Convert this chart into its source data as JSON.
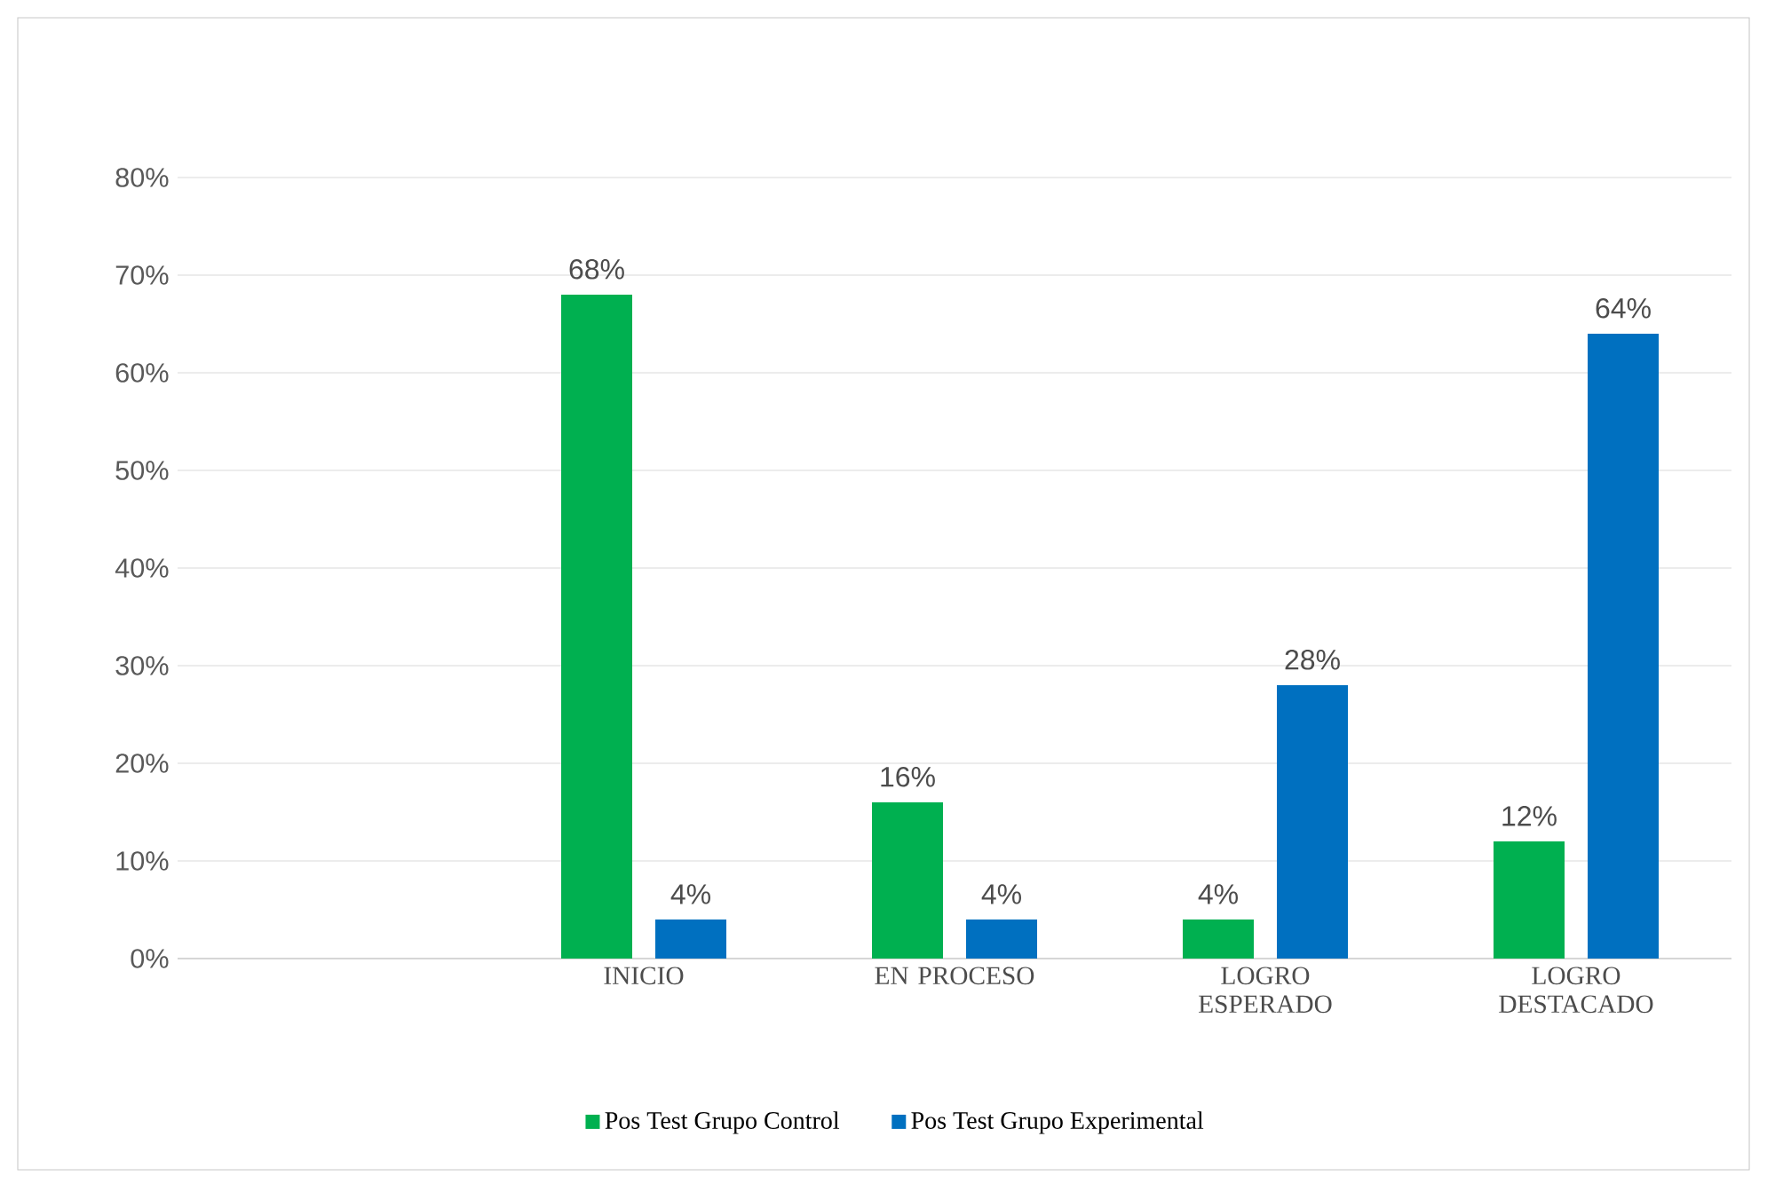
{
  "chart_data": {
    "type": "bar",
    "categories": [
      null,
      "INICIO",
      "EN PROCESO",
      "LOGRO ESPERADO",
      "LOGRO DESTACADO"
    ],
    "series": [
      {
        "name": "Pos Test Grupo Control",
        "color": "#00b050",
        "values": [
          null,
          68,
          16,
          4,
          12
        ],
        "value_labels": [
          null,
          "68%",
          "16%",
          "4%",
          "12%"
        ]
      },
      {
        "name": "Pos Test Grupo Experimental",
        "color": "#0070c0",
        "values": [
          null,
          4,
          4,
          28,
          64
        ],
        "value_labels": [
          null,
          "4%",
          "4%",
          "28%",
          "64%"
        ]
      }
    ],
    "ylim": [
      0,
      80
    ],
    "yticks": [
      {
        "value": 0,
        "label": "0%"
      },
      {
        "value": 10,
        "label": "10%"
      },
      {
        "value": 20,
        "label": "20%"
      },
      {
        "value": 30,
        "label": "30%"
      },
      {
        "value": 40,
        "label": "40%"
      },
      {
        "value": 50,
        "label": "50%"
      },
      {
        "value": 60,
        "label": "60%"
      },
      {
        "value": 70,
        "label": "70%"
      },
      {
        "value": 80,
        "label": "80%"
      }
    ],
    "grid": "y",
    "legend": "bottom"
  }
}
